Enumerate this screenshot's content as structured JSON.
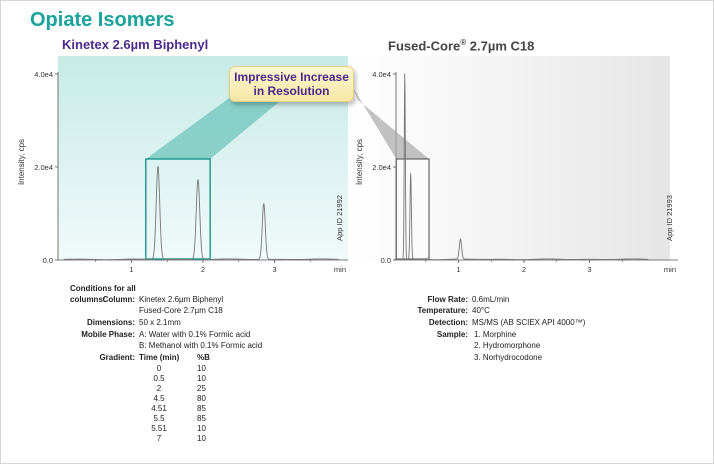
{
  "title": "Opiate Isomers",
  "left_title": "Kinetex 2.6µm Biphenyl",
  "right_title_main": "Fused-Core",
  "right_title_sup": "®",
  "right_title_rest": " 2.7µm C18",
  "callout": [
    "Impressive Increase",
    "in Resolution"
  ],
  "colors": {
    "title": "#1aa39a",
    "subtitle": "#4b2a8a",
    "highlight": "#46b7ae",
    "trace": "#777777"
  },
  "chart_data": [
    {
      "type": "line",
      "panel": "left",
      "ylabel": "Intensity, cps",
      "xlabel": "min",
      "xlim": [
        0,
        4.1
      ],
      "ylim": [
        0,
        40000
      ],
      "xticks": [
        1,
        2,
        3
      ],
      "yticks": [
        0,
        20000,
        40000
      ],
      "ytick_labels": [
        "0.0",
        "2.0e4",
        "4.0e4"
      ],
      "annotation": "App ID 21992",
      "peaks": [
        {
          "x": 1.37,
          "y": 20000,
          "width": 0.035
        },
        {
          "x": 1.93,
          "y": 17200,
          "width": 0.035
        },
        {
          "x": 2.85,
          "y": 12000,
          "width": 0.03
        }
      ],
      "zoom_box_x": [
        1.2,
        2.1
      ]
    },
    {
      "type": "line",
      "panel": "right",
      "ylabel": "Intensity, cps",
      "xlabel": "min",
      "xlim": [
        0,
        4.1
      ],
      "ylim": [
        0,
        40000
      ],
      "xticks": [
        1,
        2,
        3
      ],
      "yticks": [
        0,
        20000,
        40000
      ],
      "ytick_labels": [
        "0.0",
        "2.0e4",
        "4.0e4"
      ],
      "annotation": "App ID 21993",
      "peaks": [
        {
          "x": 0.18,
          "y": 40000,
          "width": 0.012
        },
        {
          "x": 0.27,
          "y": 18500,
          "width": 0.015
        },
        {
          "x": 1.03,
          "y": 4300,
          "width": 0.025
        }
      ],
      "zoom_box_x": [
        0.05,
        0.55
      ]
    }
  ],
  "conditions": {
    "heading": "Conditions for all columns:",
    "column_label": "Column:",
    "column_values": [
      "Kinetex 2.6µm Biphenyl",
      "Fused-Core 2.7µm C18"
    ],
    "dimensions_label": "Dimensions:",
    "dimensions": "50 x 2.1mm",
    "mobile_label": "Mobile Phase:",
    "mobile_values": [
      "A: Water with 0.1% Formic acid",
      "B: Methanol with 0.1% Formic acid"
    ],
    "gradient_label": "Gradient:",
    "gradient_headers": [
      "Time (min)",
      "%B"
    ],
    "gradient_rows": [
      [
        "0",
        "10"
      ],
      [
        "0.5",
        "10"
      ],
      [
        "2",
        "25"
      ],
      [
        "4.5",
        "80"
      ],
      [
        "4.51",
        "85"
      ],
      [
        "5.5",
        "85"
      ],
      [
        "5.51",
        "10"
      ],
      [
        "7",
        "10"
      ]
    ],
    "flow_label": "Flow Rate:",
    "flow": "0.6mL/min",
    "temp_label": "Temperature:",
    "temp": "40°C",
    "detection_label": "Detection:",
    "detection": "MS/MS (AB SCIEX API 4000™)",
    "sample_label": "Sample:",
    "samples": [
      "1.  Morphine",
      "2.  Hydromorphone",
      "3.  Norhydrocodone"
    ]
  }
}
